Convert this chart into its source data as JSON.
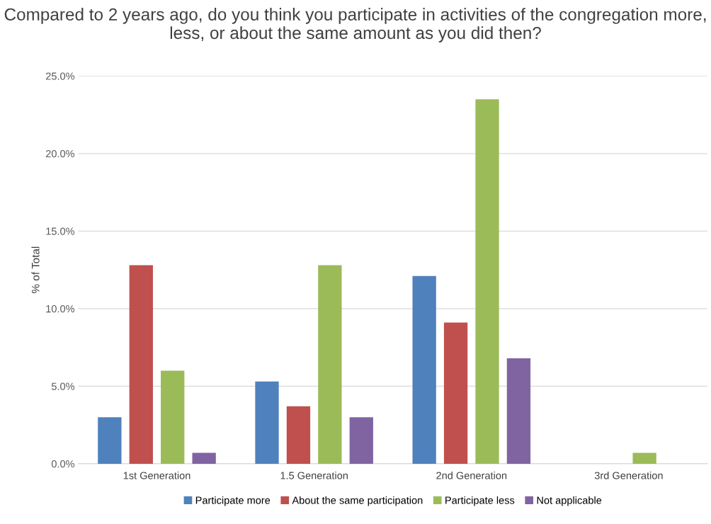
{
  "chart_data": {
    "type": "bar",
    "title": "Compared to 2 years ago, do you think you participate in activities of the congregation more, less, or about the same amount as you did then?",
    "ylabel": "% of Total",
    "categories": [
      "1st Generation",
      "1.5 Generation",
      "2nd Generation",
      "3rd Generation"
    ],
    "series": [
      {
        "name": "Participate more",
        "color": "#4f81bd",
        "values": [
          3.0,
          5.3,
          12.1,
          0
        ]
      },
      {
        "name": "About the same participation",
        "color": "#c0504d",
        "values": [
          12.8,
          3.7,
          9.1,
          0
        ]
      },
      {
        "name": "Participate less",
        "color": "#9bbb59",
        "values": [
          6.0,
          12.8,
          23.5,
          0.7
        ]
      },
      {
        "name": "Not applicable",
        "color": "#8064a2",
        "values": [
          0.7,
          3.0,
          6.8,
          0
        ]
      }
    ],
    "ylim": [
      0,
      25
    ],
    "yticks": [
      {
        "value": 0,
        "label": "0.0%"
      },
      {
        "value": 5,
        "label": "5.0%"
      },
      {
        "value": 10,
        "label": "10.0%"
      },
      {
        "value": 15,
        "label": "15.0%"
      },
      {
        "value": 20,
        "label": "20.0%"
      },
      {
        "value": 25,
        "label": "25.0%"
      }
    ],
    "grid": "y",
    "legend": "bottom"
  }
}
